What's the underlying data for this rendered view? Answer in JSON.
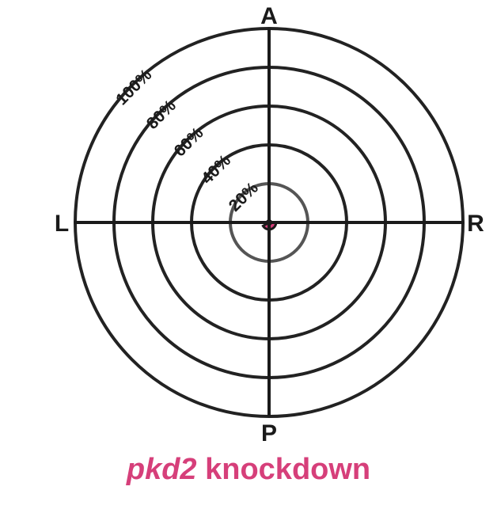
{
  "chart_data": {
    "type": "polar",
    "title": {
      "gene": "pkd2",
      "rest": " knockdown"
    },
    "title_color": "#d63f7a",
    "axis_labels": {
      "top": "A",
      "bottom": "P",
      "left": "L",
      "right": "R"
    },
    "radial_max": 100,
    "rings": [
      {
        "value": 20,
        "label": "20%",
        "color": "#555555"
      },
      {
        "value": 40,
        "label": "40%",
        "color": "#222222"
      },
      {
        "value": 60,
        "label": "60%",
        "color": "#222222"
      },
      {
        "value": 80,
        "label": "80%",
        "color": "#222222"
      },
      {
        "value": 100,
        "label": "100%",
        "color": "#222222"
      }
    ],
    "wedge": {
      "color": "#d63f7a",
      "start_deg": 0,
      "end_deg": 150,
      "radius_value": 3.6
    }
  }
}
